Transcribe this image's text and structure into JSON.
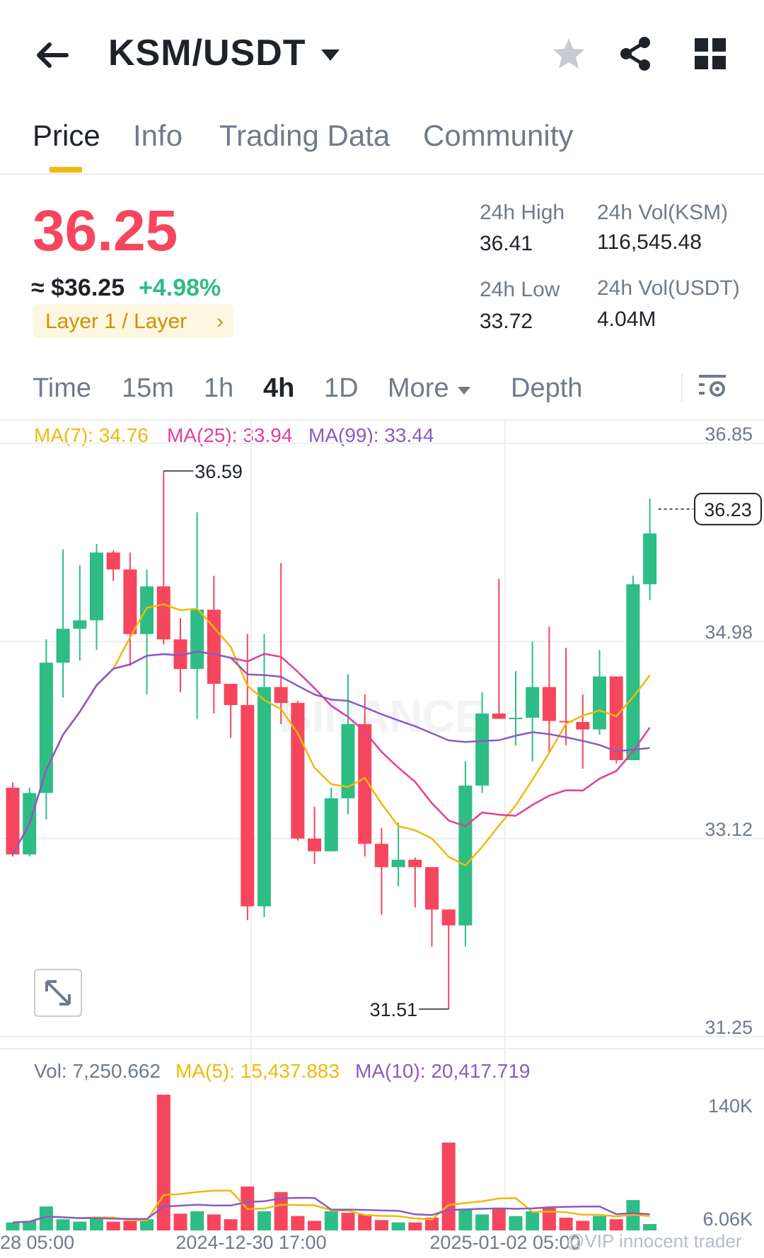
{
  "header": {
    "pair": "KSM/USDT"
  },
  "tabs": [
    {
      "label": "Price",
      "active": true
    },
    {
      "label": "Info"
    },
    {
      "label": "Trading Data"
    },
    {
      "label": "Community"
    }
  ],
  "price": {
    "last": "36.25",
    "approx": "≈ $36.25",
    "change": "+4.98%",
    "tag": "Layer 1 / Layer"
  },
  "stats": {
    "high_label": "24h High",
    "high_value": "36.41",
    "low_label": "24h Low",
    "low_value": "33.72",
    "vol_ksm_label": "24h Vol(KSM)",
    "vol_ksm_value": "116,545.48",
    "vol_usdt_label": "24h Vol(USDT)",
    "vol_usdt_value": "4.04M"
  },
  "intervals": [
    "Time",
    "15m",
    "1h",
    "4h",
    "1D",
    "More",
    "Depth"
  ],
  "active_interval": "4h",
  "ma_legend": {
    "ma7": "MA(7): 34.76",
    "ma25": "MA(25): 33.94",
    "ma99": "MA(99): 33.44"
  },
  "vol_legend": {
    "vol": "Vol: 7,250.662",
    "ma5": "MA(5): 15,437.883",
    "ma10": "MA(10): 20,417.719"
  },
  "colors": {
    "up": "#2ebd85",
    "down": "#f6465d",
    "ma7": "#f0b90b",
    "ma25": "#e0409b",
    "ma99": "#8a5bc2",
    "accent": "#f0b90b"
  },
  "watermark": "@VIP innocent trader",
  "chart_data": {
    "type": "candlestick",
    "price_axis_ticks": [
      "36.85",
      "34.98",
      "33.12",
      "31.25"
    ],
    "price_ylim": [
      31.25,
      36.85
    ],
    "volume_axis_ticks": [
      "140K",
      "6.06K"
    ],
    "x_tick_labels": [
      "28 05:00",
      "2024-12-30 17:00",
      "2025-01-02 05:00"
    ],
    "current_price_label": "36.23",
    "high_marker": "36.59",
    "low_marker": "31.51",
    "candles": [
      {
        "o": 33.6,
        "h": 33.65,
        "l": 32.95,
        "c": 32.97
      },
      {
        "o": 32.97,
        "h": 33.6,
        "l": 32.95,
        "c": 33.55
      },
      {
        "o": 33.55,
        "h": 35.0,
        "l": 33.3,
        "c": 34.78
      },
      {
        "o": 34.78,
        "h": 35.85,
        "l": 34.45,
        "c": 35.1
      },
      {
        "o": 35.1,
        "h": 35.7,
        "l": 34.8,
        "c": 35.18
      },
      {
        "o": 35.18,
        "h": 35.9,
        "l": 34.9,
        "c": 35.82
      },
      {
        "o": 35.82,
        "h": 35.84,
        "l": 35.55,
        "c": 35.66
      },
      {
        "o": 35.66,
        "h": 35.82,
        "l": 34.75,
        "c": 35.05
      },
      {
        "o": 35.05,
        "h": 35.66,
        "l": 34.48,
        "c": 35.5
      },
      {
        "o": 35.5,
        "h": 36.59,
        "l": 34.95,
        "c": 35.0
      },
      {
        "o": 35.0,
        "h": 35.2,
        "l": 34.5,
        "c": 34.72
      },
      {
        "o": 34.72,
        "h": 36.2,
        "l": 34.25,
        "c": 35.28
      },
      {
        "o": 35.28,
        "h": 35.6,
        "l": 34.3,
        "c": 34.58
      },
      {
        "o": 34.58,
        "h": 34.58,
        "l": 34.07,
        "c": 34.38
      },
      {
        "o": 34.38,
        "h": 35.05,
        "l": 32.35,
        "c": 32.48
      },
      {
        "o": 32.48,
        "h": 35.05,
        "l": 32.38,
        "c": 34.55
      },
      {
        "o": 34.55,
        "h": 35.72,
        "l": 34.2,
        "c": 34.4
      },
      {
        "o": 34.4,
        "h": 34.42,
        "l": 33.1,
        "c": 33.12
      },
      {
        "o": 33.12,
        "h": 33.42,
        "l": 32.88,
        "c": 33.0
      },
      {
        "o": 33.0,
        "h": 33.6,
        "l": 33.0,
        "c": 33.5
      },
      {
        "o": 33.5,
        "h": 34.67,
        "l": 33.35,
        "c": 34.2
      },
      {
        "o": 34.2,
        "h": 34.48,
        "l": 32.95,
        "c": 33.07
      },
      {
        "o": 33.07,
        "h": 33.22,
        "l": 32.4,
        "c": 32.85
      },
      {
        "o": 32.85,
        "h": 33.27,
        "l": 32.67,
        "c": 32.92
      },
      {
        "o": 32.92,
        "h": 32.94,
        "l": 32.47,
        "c": 32.85
      },
      {
        "o": 32.85,
        "h": 32.85,
        "l": 32.1,
        "c": 32.45
      },
      {
        "o": 32.45,
        "h": 32.45,
        "l": 31.51,
        "c": 32.3
      },
      {
        "o": 32.3,
        "h": 33.85,
        "l": 32.1,
        "c": 33.62
      },
      {
        "o": 33.62,
        "h": 34.5,
        "l": 33.55,
        "c": 34.3
      },
      {
        "o": 34.3,
        "h": 35.57,
        "l": 34.25,
        "c": 34.25
      },
      {
        "o": 34.25,
        "h": 34.7,
        "l": 34.0,
        "c": 34.26
      },
      {
        "o": 34.26,
        "h": 34.98,
        "l": 33.85,
        "c": 34.55
      },
      {
        "o": 34.55,
        "h": 35.12,
        "l": 33.93,
        "c": 34.23
      },
      {
        "o": 34.23,
        "h": 34.92,
        "l": 34.0,
        "c": 34.22
      },
      {
        "o": 34.22,
        "h": 34.48,
        "l": 33.78,
        "c": 34.15
      },
      {
        "o": 34.15,
        "h": 34.9,
        "l": 34.1,
        "c": 34.65
      },
      {
        "o": 34.65,
        "h": 34.65,
        "l": 33.83,
        "c": 33.86
      },
      {
        "o": 33.86,
        "h": 35.6,
        "l": 33.86,
        "c": 35.52
      },
      {
        "o": 35.52,
        "h": 36.33,
        "l": 35.37,
        "c": 36.0
      }
    ],
    "volumes": [
      10,
      12,
      30,
      14,
      11,
      15,
      11,
      12,
      14,
      170,
      21,
      24,
      20,
      14,
      55,
      24,
      48,
      18,
      12,
      24,
      22,
      20,
      13,
      10,
      10,
      16,
      110,
      26,
      20,
      28,
      18,
      24,
      28,
      16,
      12,
      18,
      14,
      38,
      8
    ],
    "up_volume_flags": [
      true,
      true,
      true,
      true,
      true,
      true,
      false,
      false,
      true,
      false,
      false,
      true,
      false,
      false,
      false,
      true,
      false,
      false,
      false,
      true,
      false,
      false,
      false,
      true,
      false,
      false,
      false,
      true,
      true,
      false,
      true,
      true,
      false,
      false,
      false,
      true,
      false,
      true,
      true
    ]
  }
}
